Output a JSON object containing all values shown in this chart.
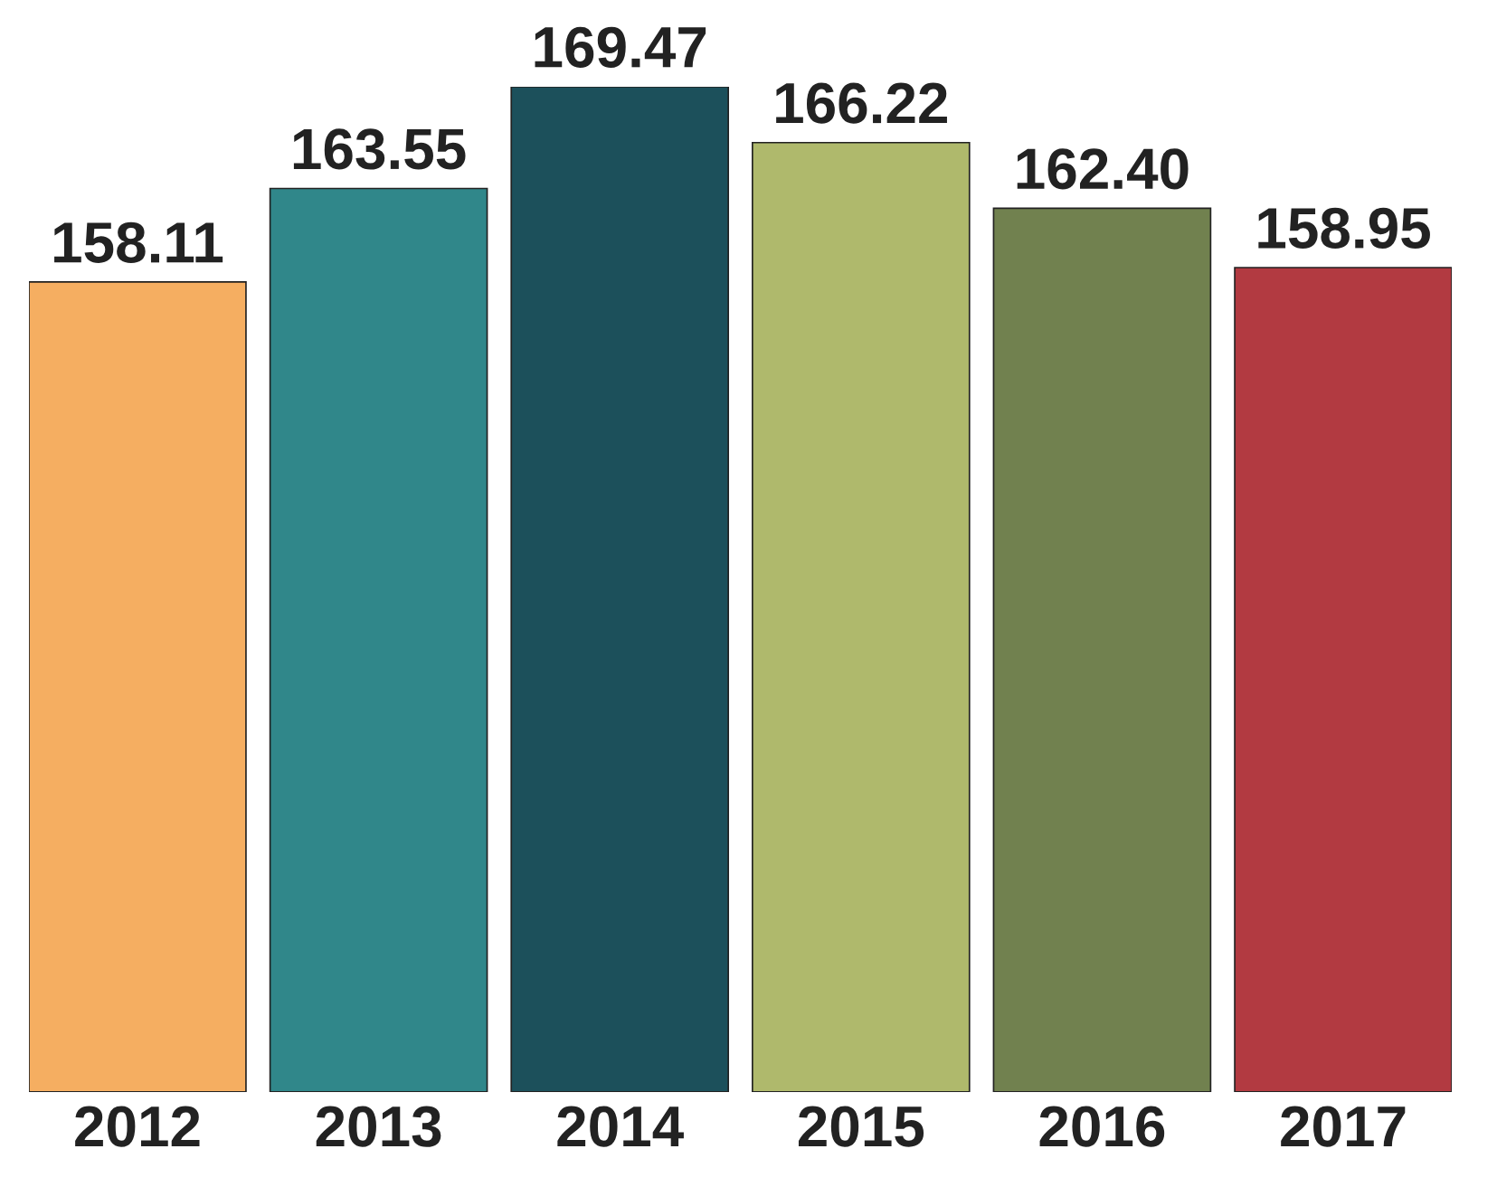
{
  "chart_data": {
    "type": "bar",
    "categories": [
      "2012",
      "2013",
      "2014",
      "2015",
      "2016",
      "2017"
    ],
    "values": [
      158.11,
      163.55,
      169.47,
      166.22,
      162.4,
      158.95
    ],
    "value_labels": [
      "158.11",
      "163.55",
      "169.47",
      "166.22",
      "162.40",
      "158.95"
    ],
    "colors": [
      "#f5ae61",
      "#30878a",
      "#1c505b",
      "#afb96c",
      "#71814f",
      "#b23a41"
    ],
    "ylim": [
      111,
      169.47
    ],
    "tick_labels": "x",
    "grid": false,
    "legend": false
  }
}
